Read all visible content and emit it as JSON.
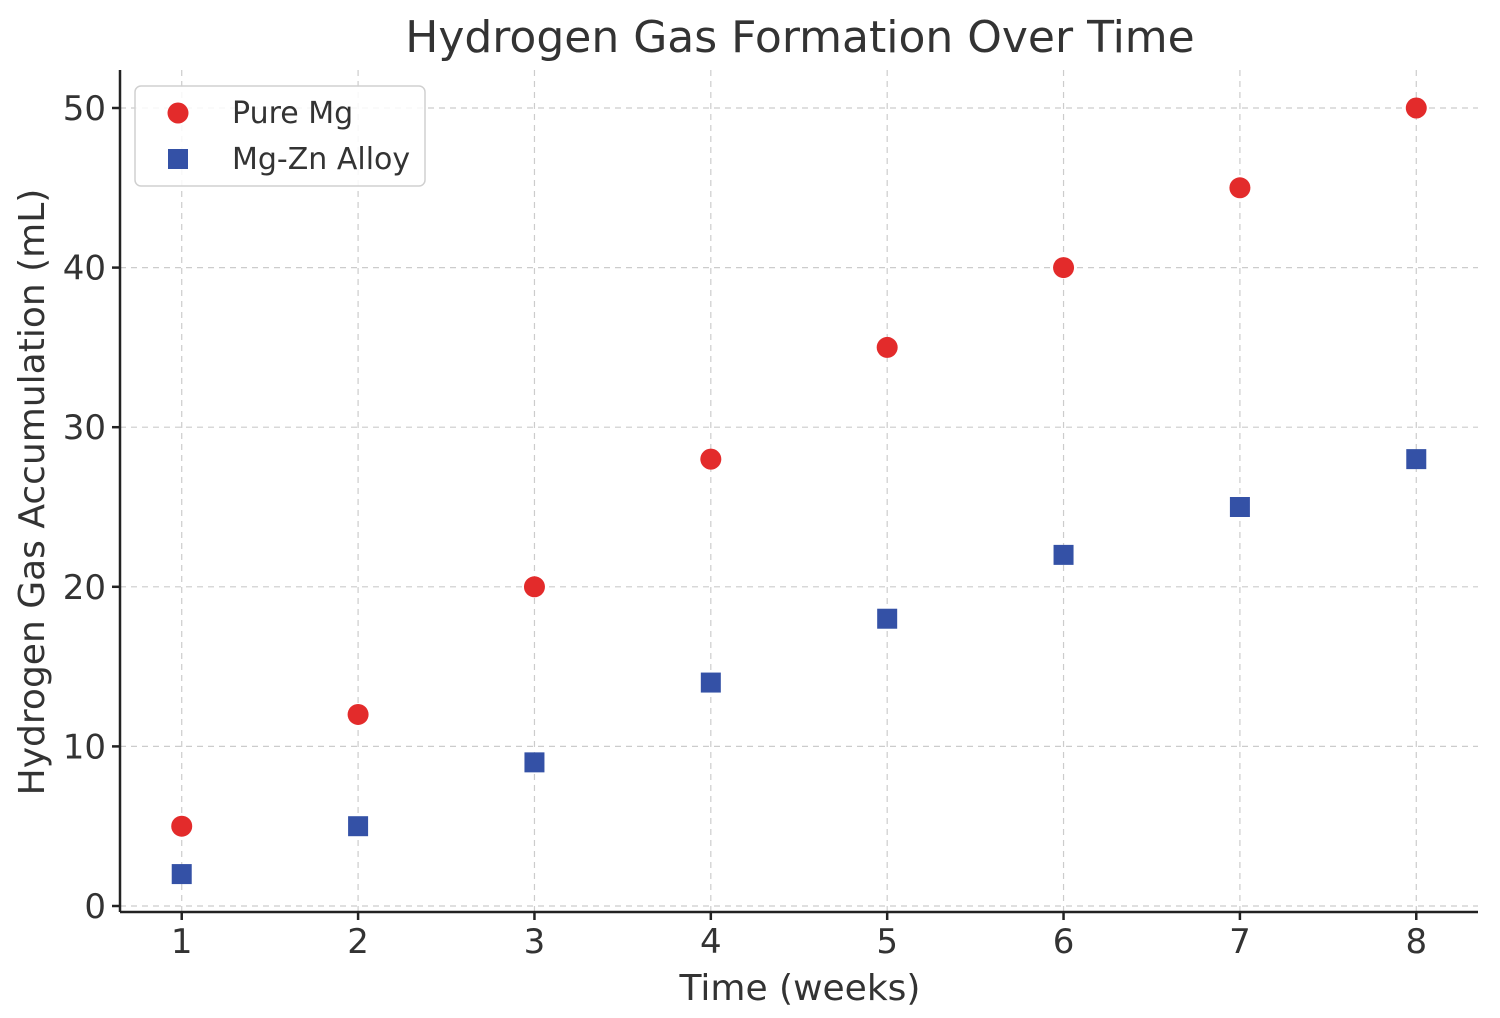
{
  "chart_data": {
    "type": "scatter",
    "title": "Hydrogen Gas Formation Over Time",
    "xlabel": "Time (weeks)",
    "ylabel": "Hydrogen Gas Accumulation (mL)",
    "x": [
      1,
      2,
      3,
      4,
      5,
      6,
      7,
      8
    ],
    "x_ticks": [
      "1",
      "2",
      "3",
      "4",
      "5",
      "6",
      "7",
      "8"
    ],
    "y_ticks": [
      "0",
      "10",
      "20",
      "30",
      "40",
      "50"
    ],
    "xlim": [
      0.65,
      8.35
    ],
    "ylim": [
      0,
      52.5
    ],
    "grid": true,
    "legend_position": "top-left",
    "series": [
      {
        "name": "Pure Mg",
        "marker": "circle",
        "color": "#e32b2b",
        "values": [
          5,
          12,
          20,
          28,
          35,
          40,
          45,
          50
        ]
      },
      {
        "name": "Mg-Zn Alloy",
        "marker": "square",
        "color": "#3451a6",
        "values": [
          2,
          5,
          9,
          14,
          18,
          22,
          25,
          28
        ]
      }
    ]
  }
}
